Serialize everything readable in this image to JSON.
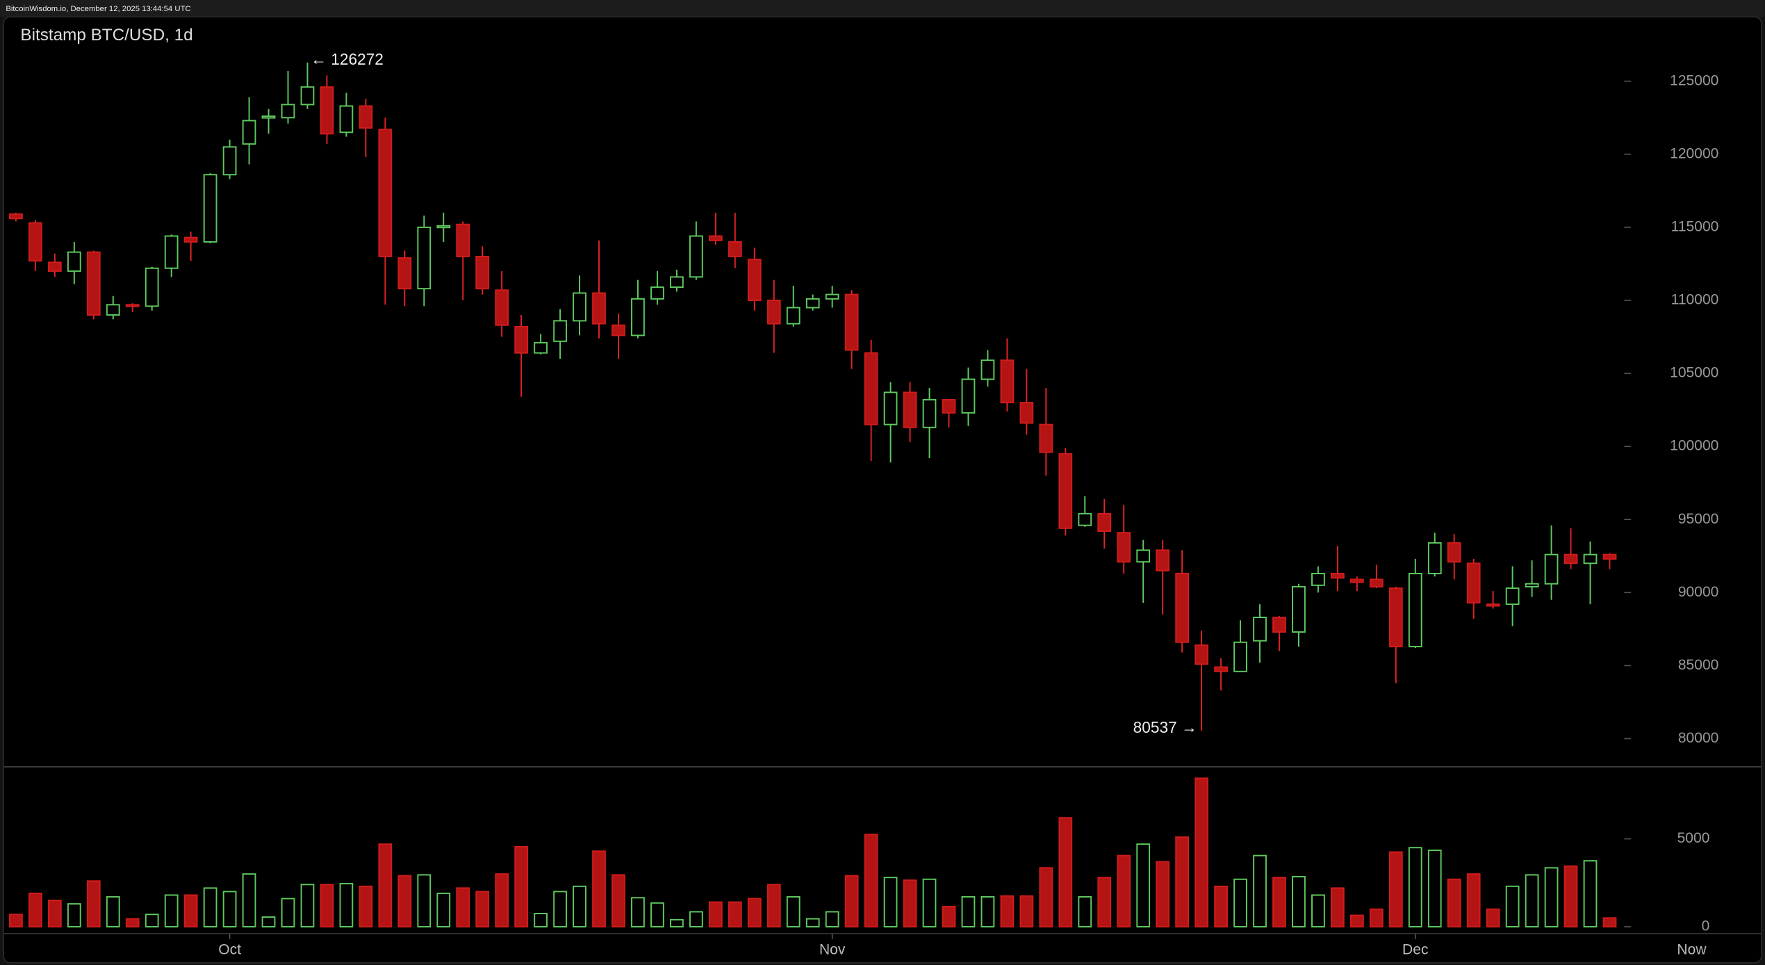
{
  "header": "BitcoinWisdom.io, December 12, 2025 13:44:54 UTC",
  "chart_data": {
    "type": "candlestick",
    "title": "Bitstamp BTC/USD, 1d",
    "categories": [
      null,
      null,
      null,
      null,
      null,
      null,
      null,
      null,
      null,
      null,
      null,
      "Oct",
      null,
      null,
      null,
      null,
      null,
      null,
      null,
      null,
      null,
      null,
      null,
      null,
      null,
      null,
      null,
      null,
      null,
      null,
      null,
      null,
      null,
      null,
      null,
      null,
      null,
      null,
      null,
      null,
      null,
      null,
      "Nov",
      null,
      null,
      null,
      null,
      null,
      null,
      null,
      null,
      null,
      null,
      null,
      null,
      null,
      null,
      null,
      null,
      null,
      null,
      null,
      null,
      null,
      null,
      null,
      null,
      null,
      null,
      null,
      null,
      null,
      "Dec",
      null,
      null,
      null,
      null,
      null,
      null,
      null,
      null,
      null,
      null
    ],
    "x_end_label": "Now",
    "open": [
      115900,
      115300,
      112600,
      112000,
      113300,
      109000,
      109700,
      109600,
      112200,
      114300,
      114000,
      118600,
      120700,
      122500,
      122500,
      123400,
      124600,
      121500,
      123300,
      121700,
      112900,
      110800,
      115000,
      115200,
      113000,
      110700,
      108200,
      106400,
      107200,
      108600,
      110500,
      108300,
      107600,
      110100,
      110900,
      111600,
      114400,
      114000,
      112800,
      110000,
      108400,
      109500,
      110100,
      110400,
      106400,
      101500,
      103700,
      101300,
      103200,
      102300,
      104600,
      105900,
      103000,
      101500,
      99500,
      94600,
      95400,
      94100,
      92100,
      92900,
      91300,
      86400,
      84900,
      84600,
      86700,
      88300,
      87300,
      90500,
      91300,
      90900,
      90900,
      90300,
      86300,
      91300,
      93400,
      92000,
      89200,
      89200,
      90400,
      90600,
      92600,
      92000,
      92600
    ],
    "high": [
      116000,
      115500,
      113200,
      114000,
      113400,
      110300,
      109800,
      112300,
      114500,
      114700,
      118700,
      121000,
      123900,
      123100,
      125700,
      126272,
      125400,
      124200,
      123800,
      122500,
      113400,
      115800,
      116000,
      115400,
      113700,
      112000,
      109000,
      107700,
      109400,
      111700,
      114100,
      109100,
      111400,
      112000,
      112100,
      115400,
      116000,
      116000,
      113600,
      111400,
      111000,
      110400,
      111000,
      110700,
      107300,
      104400,
      104400,
      104000,
      103200,
      105400,
      106600,
      107400,
      105300,
      104000,
      99900,
      96600,
      96400,
      96000,
      93600,
      93600,
      92900,
      87400,
      85500,
      88100,
      89200,
      88400,
      90600,
      91800,
      93200,
      91100,
      91900,
      90400,
      92300,
      94100,
      94000,
      92300,
      90100,
      91800,
      92200,
      94600,
      94400,
      93500,
      92700
    ],
    "low": [
      115400,
      112000,
      111600,
      111100,
      108700,
      108700,
      109200,
      109300,
      111600,
      112700,
      113900,
      118300,
      119300,
      121400,
      122100,
      123100,
      120700,
      121200,
      119800,
      109700,
      109600,
      109600,
      114000,
      110000,
      110400,
      107500,
      103400,
      106300,
      106000,
      107600,
      107400,
      106000,
      107400,
      109700,
      110600,
      111400,
      113800,
      112200,
      109300,
      106400,
      108200,
      109300,
      109500,
      105300,
      99000,
      98900,
      100300,
      99200,
      101300,
      101400,
      104100,
      102400,
      100800,
      98000,
      93900,
      94500,
      93000,
      91300,
      89300,
      88500,
      85900,
      80537,
      83300,
      84600,
      85200,
      86000,
      86300,
      90000,
      90100,
      90100,
      90300,
      83800,
      86200,
      91100,
      90900,
      88200,
      88900,
      87700,
      89700,
      89500,
      91600,
      89200,
      91600
    ],
    "close": [
      115600,
      112700,
      112000,
      113300,
      109000,
      109700,
      109600,
      112200,
      114400,
      114000,
      118600,
      120500,
      122300,
      122600,
      123400,
      124600,
      121400,
      123300,
      121800,
      113000,
      110800,
      115000,
      115100,
      113000,
      110800,
      108300,
      106400,
      107100,
      108600,
      110500,
      108400,
      107600,
      110100,
      110900,
      111600,
      114400,
      114100,
      113000,
      110000,
      108400,
      109500,
      110100,
      110400,
      106600,
      101500,
      103700,
      101300,
      103200,
      102300,
      104600,
      105900,
      103000,
      101600,
      99600,
      94400,
      95400,
      94200,
      92100,
      92900,
      91500,
      86600,
      85100,
      84600,
      86600,
      88300,
      87300,
      90400,
      91300,
      91000,
      90700,
      90400,
      86300,
      91300,
      93400,
      92100,
      89300,
      89100,
      90300,
      90600,
      92600,
      92000,
      92600,
      92300
    ],
    "volume": [
      700,
      1900,
      1500,
      1300,
      2600,
      1700,
      450,
      700,
      1800,
      1800,
      2200,
      2000,
      3000,
      550,
      1600,
      2400,
      2400,
      2450,
      2300,
      4700,
      2900,
      2950,
      1900,
      2200,
      2000,
      3000,
      4550,
      750,
      2000,
      2300,
      4300,
      2950,
      1650,
      1350,
      400,
      850,
      1400,
      1400,
      1600,
      2400,
      1700,
      450,
      850,
      2900,
      5250,
      2800,
      2650,
      2700,
      1150,
      1700,
      1700,
      1750,
      1750,
      3350,
      6200,
      1700,
      2800,
      4050,
      4700,
      3700,
      5100,
      8450,
      2300,
      2700,
      4050,
      2800,
      2850,
      1800,
      2200,
      650,
      1000,
      4250,
      4500,
      4350,
      2700,
      3000,
      1000,
      2300,
      2950,
      3350,
      3450,
      3750,
      500
    ],
    "up_color": "#5ec95e",
    "down_color": "#b51414",
    "ylim": [
      78150,
      129400
    ],
    "yticks": [
      80000,
      85000,
      90000,
      95000,
      100000,
      105000,
      110000,
      115000,
      120000,
      125000
    ],
    "volume_ylim": [
      -320,
      9100
    ],
    "volume_ticks": [
      0,
      5000
    ],
    "annotations": [
      {
        "text": "← 126272",
        "value": 126272
      },
      {
        "text": "80537 →",
        "value": 80537
      }
    ]
  }
}
